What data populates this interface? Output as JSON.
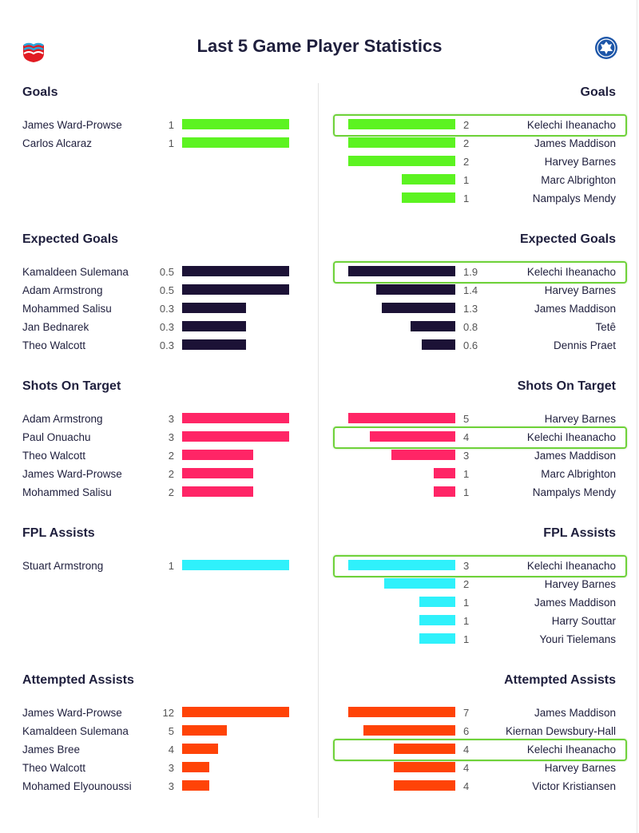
{
  "title": "Last 5 Game Player Statistics",
  "chart_data": {
    "type": "bar",
    "sections": [
      {
        "title": "Goals",
        "color": "#5cf321",
        "left": [
          {
            "name": "James Ward-Prowse",
            "value": "1"
          },
          {
            "name": "Carlos Alcaraz",
            "value": "1"
          }
        ],
        "right": [
          {
            "name": "Kelechi Iheanacho",
            "value": "2",
            "highlight": true
          },
          {
            "name": "James Maddison",
            "value": "2"
          },
          {
            "name": "Harvey Barnes",
            "value": "2"
          },
          {
            "name": "Marc Albrighton",
            "value": "1"
          },
          {
            "name": "Nampalys Mendy",
            "value": "1"
          }
        ]
      },
      {
        "title": "Expected Goals",
        "color": "#1c1236",
        "left": [
          {
            "name": "Kamaldeen Sulemana",
            "value": "0.5"
          },
          {
            "name": "Adam Armstrong",
            "value": "0.5"
          },
          {
            "name": "Mohammed Salisu",
            "value": "0.3"
          },
          {
            "name": "Jan Bednarek",
            "value": "0.3"
          },
          {
            "name": "Theo Walcott",
            "value": "0.3"
          }
        ],
        "right": [
          {
            "name": "Kelechi Iheanacho",
            "value": "1.9",
            "highlight": true
          },
          {
            "name": "Harvey Barnes",
            "value": "1.4"
          },
          {
            "name": "James Maddison",
            "value": "1.3"
          },
          {
            "name": "Tetê",
            "value": "0.8"
          },
          {
            "name": "Dennis Praet",
            "value": "0.6"
          }
        ]
      },
      {
        "title": "Shots On Target",
        "color": "#ff2566",
        "left": [
          {
            "name": "Adam Armstrong",
            "value": "3"
          },
          {
            "name": "Paul Onuachu",
            "value": "3"
          },
          {
            "name": "Theo Walcott",
            "value": "2"
          },
          {
            "name": "James Ward-Prowse",
            "value": "2"
          },
          {
            "name": "Mohammed Salisu",
            "value": "2"
          }
        ],
        "right": [
          {
            "name": "Harvey Barnes",
            "value": "5"
          },
          {
            "name": "Kelechi Iheanacho",
            "value": "4",
            "highlight": true
          },
          {
            "name": "James Maddison",
            "value": "3"
          },
          {
            "name": "Marc Albrighton",
            "value": "1"
          },
          {
            "name": "Nampalys Mendy",
            "value": "1"
          }
        ]
      },
      {
        "title": "FPL Assists",
        "color": "#2ff1fb",
        "left": [
          {
            "name": "Stuart Armstrong",
            "value": "1"
          }
        ],
        "right": [
          {
            "name": "Kelechi Iheanacho",
            "value": "3",
            "highlight": true
          },
          {
            "name": "Harvey Barnes",
            "value": "2"
          },
          {
            "name": "James Maddison",
            "value": "1"
          },
          {
            "name": "Harry Souttar",
            "value": "1"
          },
          {
            "name": "Youri Tielemans",
            "value": "1"
          }
        ]
      },
      {
        "title": "Attempted Assists",
        "color": "#ff4307",
        "left": [
          {
            "name": "James Ward-Prowse",
            "value": "12"
          },
          {
            "name": "Kamaldeen Sulemana",
            "value": "5"
          },
          {
            "name": "James Bree",
            "value": "4"
          },
          {
            "name": "Theo Walcott",
            "value": "3"
          },
          {
            "name": "Mohamed Elyounoussi",
            "value": "3"
          }
        ],
        "right": [
          {
            "name": "James Maddison",
            "value": "7"
          },
          {
            "name": "Kiernan Dewsbury-Hall",
            "value": "6"
          },
          {
            "name": "Kelechi Iheanacho",
            "value": "4",
            "highlight": true
          },
          {
            "name": "Harvey Barnes",
            "value": "4"
          },
          {
            "name": "Victor Kristiansen",
            "value": "4"
          }
        ]
      }
    ]
  }
}
